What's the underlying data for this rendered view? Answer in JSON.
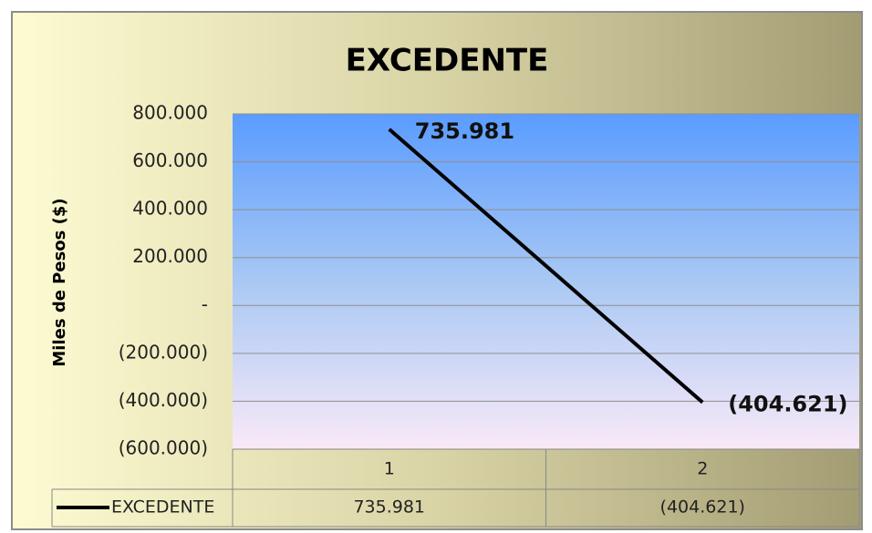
{
  "chart_data": {
    "type": "line",
    "title": "EXCEDENTE",
    "y_label": "Miles de Pesos ($)",
    "categories": [
      "1",
      "2"
    ],
    "series": [
      {
        "name": "EXCEDENTE",
        "color": "#000000",
        "values": [
          735981,
          -404621
        ],
        "value_labels": [
          "735.981",
          "(404.621)"
        ]
      }
    ],
    "ylim": [
      -600000,
      800000
    ],
    "yticks": [
      {
        "value": -600000,
        "label": "(600.000)"
      },
      {
        "value": -400000,
        "label": "(400.000)"
      },
      {
        "value": -200000,
        "label": "(200.000)"
      },
      {
        "value": 0,
        "label": "-"
      },
      {
        "value": 200000,
        "label": "200.000"
      },
      {
        "value": 400000,
        "label": "400.000"
      },
      {
        "value": 600000,
        "label": "600.000"
      },
      {
        "value": 800000,
        "label": "800.000"
      }
    ],
    "grid": true,
    "data_table": true
  }
}
